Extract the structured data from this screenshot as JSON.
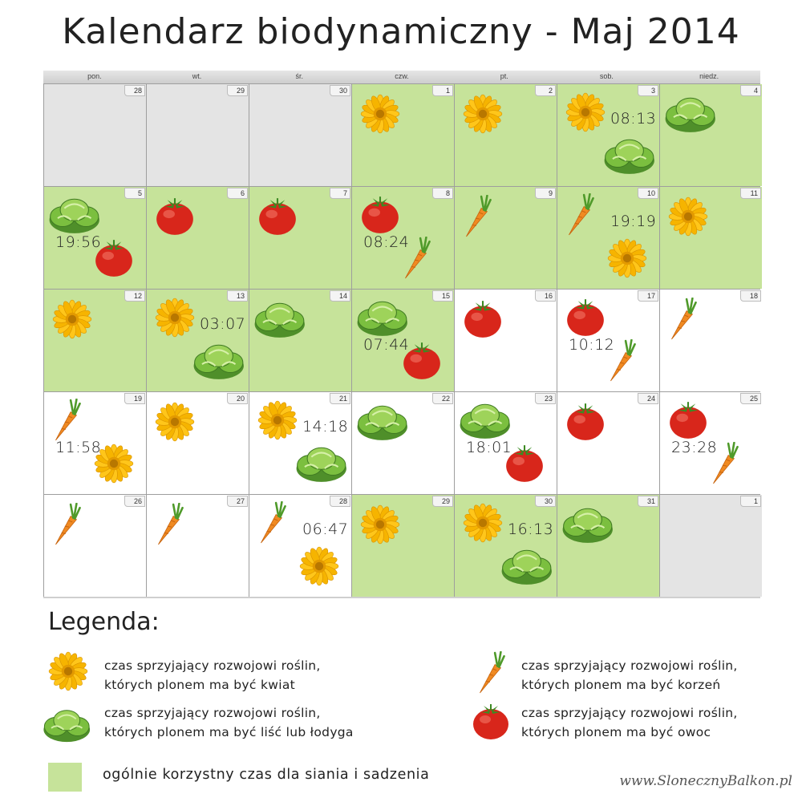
{
  "title": "Kalendarz biodynamiczny - Maj 2014",
  "colors": {
    "favorable": "#c6e39a",
    "outside_month": "#e4e4e4",
    "normal": "#ffffff"
  },
  "weekdays": [
    "pon.",
    "wt.",
    "śr.",
    "czw.",
    "pt.",
    "sob.",
    "niedz."
  ],
  "weeks": [
    [
      {
        "day": "28",
        "bg": "grey",
        "time": "",
        "icons": []
      },
      {
        "day": "29",
        "bg": "grey",
        "time": "",
        "icons": []
      },
      {
        "day": "30",
        "bg": "grey",
        "time": "",
        "icons": []
      },
      {
        "day": "1",
        "bg": "green",
        "time": "",
        "icons": [
          "flower-icon"
        ]
      },
      {
        "day": "2",
        "bg": "green",
        "time": "",
        "icons": [
          "flower-icon"
        ]
      },
      {
        "day": "3",
        "bg": "green",
        "time": "08:13",
        "icons": [
          "flower-icon",
          "lettuce-icon"
        ]
      },
      {
        "day": "4",
        "bg": "green",
        "time": "",
        "icons": [
          "lettuce-icon"
        ]
      }
    ],
    [
      {
        "day": "5",
        "bg": "green",
        "time": "19:56",
        "icons": [
          "lettuce-icon",
          "tomato-icon"
        ]
      },
      {
        "day": "6",
        "bg": "green",
        "time": "",
        "icons": [
          "tomato-icon"
        ]
      },
      {
        "day": "7",
        "bg": "green",
        "time": "",
        "icons": [
          "tomato-icon"
        ]
      },
      {
        "day": "8",
        "bg": "green",
        "time": "08:24",
        "icons": [
          "tomato-icon",
          "carrot-icon"
        ]
      },
      {
        "day": "9",
        "bg": "green",
        "time": "",
        "icons": [
          "carrot-icon"
        ]
      },
      {
        "day": "10",
        "bg": "green",
        "time": "19:19",
        "icons": [
          "carrot-icon",
          "flower-icon"
        ]
      },
      {
        "day": "11",
        "bg": "green",
        "time": "",
        "icons": [
          "flower-icon"
        ]
      }
    ],
    [
      {
        "day": "12",
        "bg": "green",
        "time": "",
        "icons": [
          "flower-icon"
        ]
      },
      {
        "day": "13",
        "bg": "green",
        "time": "03:07",
        "icons": [
          "flower-icon",
          "lettuce-icon"
        ]
      },
      {
        "day": "14",
        "bg": "green",
        "time": "",
        "icons": [
          "lettuce-icon"
        ]
      },
      {
        "day": "15",
        "bg": "green",
        "time": "07:44",
        "icons": [
          "lettuce-icon",
          "tomato-icon"
        ]
      },
      {
        "day": "16",
        "bg": "white",
        "time": "",
        "icons": [
          "tomato-icon"
        ]
      },
      {
        "day": "17",
        "bg": "white",
        "time": "10:12",
        "icons": [
          "tomato-icon",
          "carrot-icon"
        ]
      },
      {
        "day": "18",
        "bg": "white",
        "time": "",
        "icons": [
          "carrot-icon"
        ]
      }
    ],
    [
      {
        "day": "19",
        "bg": "white",
        "time": "11:58",
        "icons": [
          "carrot-icon",
          "flower-icon"
        ]
      },
      {
        "day": "20",
        "bg": "white",
        "time": "",
        "icons": [
          "flower-icon"
        ]
      },
      {
        "day": "21",
        "bg": "white",
        "time": "14:18",
        "icons": [
          "flower-icon",
          "lettuce-icon"
        ]
      },
      {
        "day": "22",
        "bg": "white",
        "time": "",
        "icons": [
          "lettuce-icon"
        ]
      },
      {
        "day": "23",
        "bg": "white",
        "time": "18:01",
        "icons": [
          "lettuce-icon",
          "tomato-icon"
        ]
      },
      {
        "day": "24",
        "bg": "white",
        "time": "",
        "icons": [
          "tomato-icon"
        ]
      },
      {
        "day": "25",
        "bg": "white",
        "time": "23:28",
        "icons": [
          "tomato-icon",
          "carrot-icon"
        ]
      }
    ],
    [
      {
        "day": "26",
        "bg": "white",
        "time": "",
        "icons": [
          "carrot-icon"
        ]
      },
      {
        "day": "27",
        "bg": "white",
        "time": "",
        "icons": [
          "carrot-icon"
        ]
      },
      {
        "day": "28",
        "bg": "white",
        "time": "06:47",
        "icons": [
          "carrot-icon",
          "flower-icon"
        ]
      },
      {
        "day": "29",
        "bg": "green",
        "time": "",
        "icons": [
          "flower-icon"
        ]
      },
      {
        "day": "30",
        "bg": "green",
        "time": "16:13",
        "icons": [
          "flower-icon",
          "lettuce-icon"
        ]
      },
      {
        "day": "31",
        "bg": "green",
        "time": "",
        "icons": [
          "lettuce-icon"
        ]
      },
      {
        "day": "1",
        "bg": "grey",
        "time": "",
        "icons": []
      }
    ]
  ],
  "legend": {
    "title": "Legenda:",
    "flower": {
      "icon": "flower-icon",
      "line1": "czas sprzyjający rozwojowi roślin,",
      "line2": "których plonem ma być kwiat"
    },
    "root": {
      "icon": "carrot-icon",
      "line1": "czas sprzyjający rozwojowi roślin,",
      "line2": "których plonem ma być korzeń"
    },
    "leaf": {
      "icon": "lettuce-icon",
      "line1": "czas sprzyjający rozwojowi roślin,",
      "line2": "których plonem ma być liść lub łodyga"
    },
    "fruit": {
      "icon": "tomato-icon",
      "line1": "czas sprzyjający rozwojowi roślin,",
      "line2": "których plonem ma być owoc"
    },
    "general": "ogólnie korzystny czas dla siania i sadzenia"
  },
  "website": "www.SlonecznyBalkon.pl"
}
